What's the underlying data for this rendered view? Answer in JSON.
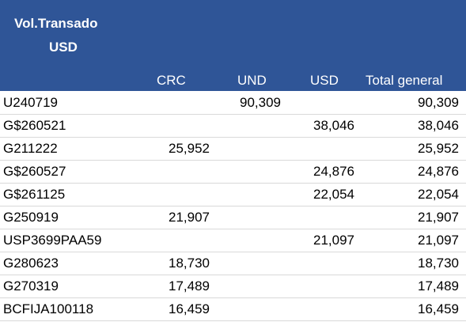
{
  "header": {
    "title_line1": "Vol.Transado",
    "title_line2": "USD",
    "columns": {
      "crc": "CRC",
      "und": "UND",
      "usd": "USD",
      "total": "Total general"
    }
  },
  "colors": {
    "header_background": "#2f5597",
    "header_text": "#ffffff"
  },
  "rows": [
    {
      "label": "U240719",
      "crc": "",
      "und": "90,309",
      "usd": "",
      "total": "90,309"
    },
    {
      "label": "G$260521",
      "crc": "",
      "und": "",
      "usd": "38,046",
      "total": "38,046"
    },
    {
      "label": "G211222",
      "crc": "25,952",
      "und": "",
      "usd": "",
      "total": "25,952"
    },
    {
      "label": "G$260527",
      "crc": "",
      "und": "",
      "usd": "24,876",
      "total": "24,876"
    },
    {
      "label": "G$261125",
      "crc": "",
      "und": "",
      "usd": "22,054",
      "total": "22,054"
    },
    {
      "label": "G250919",
      "crc": "21,907",
      "und": "",
      "usd": "",
      "total": "21,907"
    },
    {
      "label": "USP3699PAA59",
      "crc": "",
      "und": "",
      "usd": "21,097",
      "total": "21,097"
    },
    {
      "label": "G280623",
      "crc": "18,730",
      "und": "",
      "usd": "",
      "total": "18,730"
    },
    {
      "label": "G270319",
      "crc": "17,489",
      "und": "",
      "usd": "",
      "total": "17,489"
    },
    {
      "label": "BCFIJA100118",
      "crc": "16,459",
      "und": "",
      "usd": "",
      "total": "16,459"
    }
  ]
}
